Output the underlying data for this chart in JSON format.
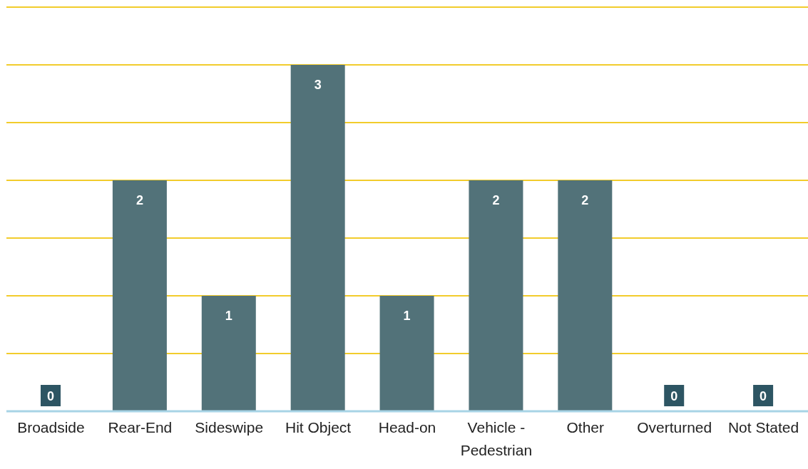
{
  "chart_data": {
    "type": "bar",
    "categories": [
      "Broadside",
      "Rear-End",
      "Sideswipe",
      "Hit Object",
      "Head-on",
      "Vehicle - Pedestrian",
      "Other",
      "Overturned",
      "Not Stated"
    ],
    "values": [
      0,
      2,
      1,
      3,
      1,
      2,
      2,
      0,
      0
    ],
    "color": "#527279",
    "ylim": [
      0,
      3.5
    ],
    "yticks": [
      {
        "value": 0,
        "label": null
      },
      {
        "value": 0.5,
        "label": null
      },
      {
        "value": 1,
        "label": null
      },
      {
        "value": 1.5,
        "label": null
      },
      {
        "value": 2,
        "label": null
      },
      {
        "value": 2.5,
        "label": null
      },
      {
        "value": 3,
        "label": null
      },
      {
        "value": 3.5,
        "label": null
      }
    ],
    "grid": "y",
    "tick_labels": "x",
    "data_labels": true
  }
}
